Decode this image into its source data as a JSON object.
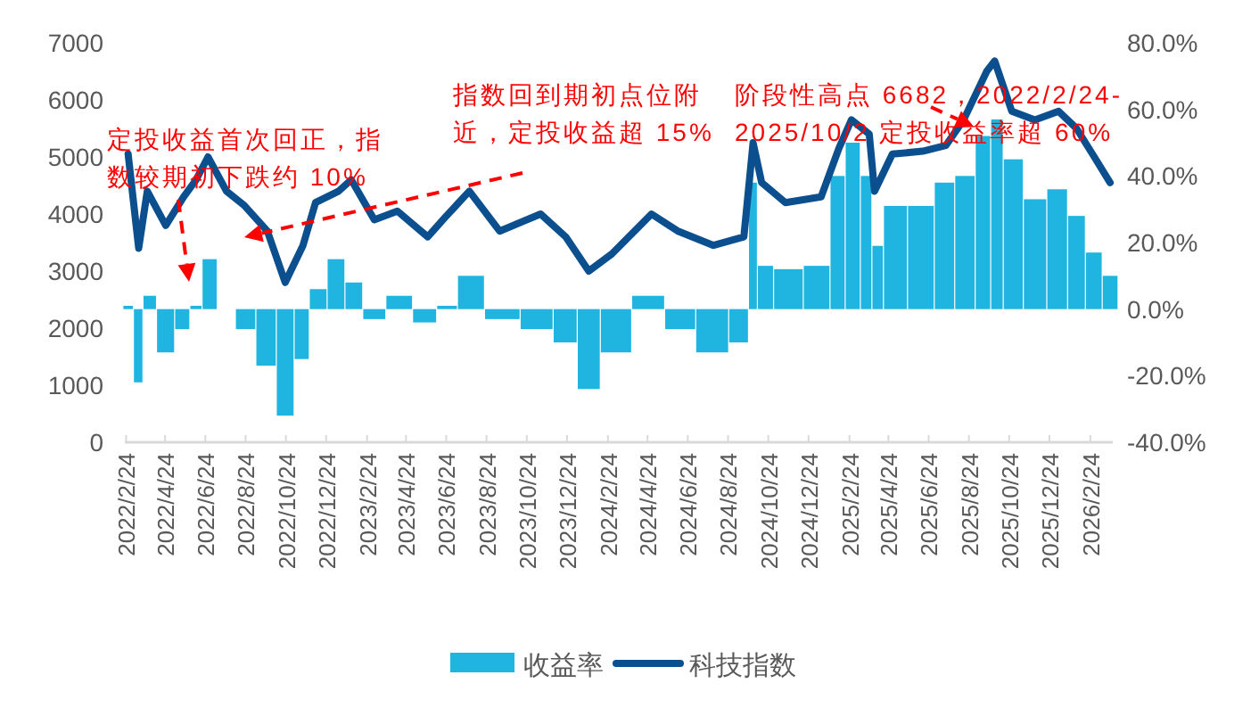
{
  "chart_data": {
    "type": "bar",
    "x": [
      "2022-02-27",
      "2022-03-15",
      "2022-03-28",
      "2022-04-25",
      "2022-05-22",
      "2022-06-10",
      "2022-06-28",
      "2022-07-26",
      "2022-08-22",
      "2022-09-26",
      "2022-10-23",
      "2022-11-19",
      "2022-12-08",
      "2023-01-12",
      "2023-01-31",
      "2023-03-07",
      "2023-04-11",
      "2023-05-27",
      "2023-06-23",
      "2023-07-29",
      "2023-09-13",
      "2023-11-14",
      "2023-12-22",
      "2024-01-26",
      "2024-03-01",
      "2024-04-30",
      "2024-06-09",
      "2024-08-02",
      "2024-09-17",
      "2024-10-01",
      "2024-10-14",
      "2024-11-19",
      "2025-01-12",
      "2025-02-08",
      "2025-02-27",
      "2025-03-26",
      "2025-04-03",
      "2025-04-30",
      "2025-06-15",
      "2025-07-20",
      "2025-08-16",
      "2025-09-20",
      "2025-10-02",
      "2025-10-28",
      "2025-12-02",
      "2026-01-07",
      "2026-02-03",
      "2026-03-02",
      "2026-03-26"
    ],
    "series": [
      {
        "name": "收益率",
        "axis": "y2",
        "color": "#1fb5e0",
        "values": [
          1,
          -22,
          4,
          -13,
          -6,
          1,
          15,
          0,
          -6,
          -17,
          -32,
          -15,
          6,
          15,
          8,
          -3,
          4,
          -4,
          1,
          10,
          -3,
          -6,
          -10,
          -24,
          -13,
          4,
          -6,
          -13,
          -10,
          38,
          13,
          12,
          13,
          40,
          50,
          40,
          19,
          31,
          31,
          38,
          40,
          52,
          57,
          45,
          33,
          36,
          28,
          17,
          10
        ]
      },
      {
        "name": "科技指数",
        "type": "line",
        "color": "#0b4f8f",
        "values": [
          5050,
          3400,
          4400,
          3800,
          4300,
          4600,
          5000,
          4400,
          4150,
          3700,
          2800,
          3450,
          4200,
          4400,
          4600,
          3900,
          4050,
          3600,
          3950,
          4400,
          3700,
          4000,
          3600,
          3000,
          3300,
          4000,
          3700,
          3450,
          3600,
          5250,
          4550,
          4200,
          4300,
          5150,
          5650,
          5400,
          4400,
          5050,
          5100,
          5200,
          5650,
          6500,
          6682,
          5800,
          5650,
          5800,
          5500,
          5000,
          4550
        ]
      }
    ],
    "xlim": [
      "2022-02-22",
      "2026-03-30"
    ],
    "xticks": [
      {
        "value": "2022-02-24",
        "label": "2022/2/24"
      },
      {
        "value": "2022-04-24",
        "label": "2022/4/24"
      },
      {
        "value": "2022-06-24",
        "label": "2022/6/24"
      },
      {
        "value": "2022-08-24",
        "label": "2022/8/24"
      },
      {
        "value": "2022-10-24",
        "label": "2022/10/24"
      },
      {
        "value": "2022-12-24",
        "label": "2022/12/24"
      },
      {
        "value": "2023-02-24",
        "label": "2023/2/24"
      },
      {
        "value": "2023-04-24",
        "label": "2023/4/24"
      },
      {
        "value": "2023-06-24",
        "label": "2023/6/24"
      },
      {
        "value": "2023-08-24",
        "label": "2023/8/24"
      },
      {
        "value": "2023-10-24",
        "label": "2023/10/24"
      },
      {
        "value": "2023-12-24",
        "label": "2023/12/24"
      },
      {
        "value": "2024-02-24",
        "label": "2024/2/24"
      },
      {
        "value": "2024-04-24",
        "label": "2024/4/24"
      },
      {
        "value": "2024-06-24",
        "label": "2024/6/24"
      },
      {
        "value": "2024-08-24",
        "label": "2024/8/24"
      },
      {
        "value": "2024-10-24",
        "label": "2024/10/24"
      },
      {
        "value": "2024-12-24",
        "label": "2024/12/24"
      },
      {
        "value": "2025-02-24",
        "label": "2025/2/24"
      },
      {
        "value": "2025-04-24",
        "label": "2025/4/24"
      },
      {
        "value": "2025-06-24",
        "label": "2025/6/24"
      },
      {
        "value": "2025-08-24",
        "label": "2025/8/24"
      },
      {
        "value": "2025-10-24",
        "label": "2025/10/24"
      },
      {
        "value": "2025-12-24",
        "label": "2025/12/24"
      },
      {
        "value": "2026-02-24",
        "label": "2026/2/24"
      }
    ],
    "ylim": [
      0,
      7000
    ],
    "yticks": [
      0,
      1000,
      2000,
      3000,
      4000,
      5000,
      6000,
      7000
    ],
    "y2lim": [
      -40,
      80
    ],
    "y2ticks": [
      {
        "value": -40,
        "label": "-40.0%"
      },
      {
        "value": -20,
        "label": "-20.0%"
      },
      {
        "value": 0,
        "label": "0.0%"
      },
      {
        "value": 20,
        "label": "20.0%"
      },
      {
        "value": 40,
        "label": "40.0%"
      },
      {
        "value": 60,
        "label": "60.0%"
      },
      {
        "value": 80,
        "label": "80.0%"
      }
    ],
    "legend": "bottom",
    "annotations": [
      "定投收益首次回正，指数较期初下跌约 10%",
      "指数回到期初点位附近，定投收益超 15%",
      "阶段性高点 6682，2022/2/24-2025/10/2 定投收益率超 60%"
    ]
  }
}
